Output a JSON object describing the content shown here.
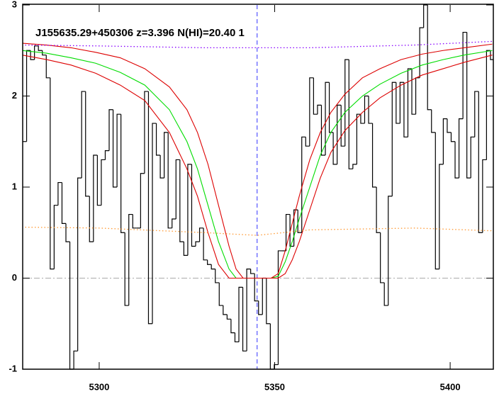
{
  "chart_data": {
    "type": "line",
    "title": "J155635.29+450306 z=3.396 N(HI)=20.40 1",
    "xlim": [
      5278.2,
      5412.3
    ],
    "ylim": [
      -1,
      3
    ],
    "xticks": [
      5300,
      5350,
      5400
    ],
    "yticks": [
      -1,
      0,
      1,
      2,
      3
    ],
    "reference_lines": [
      {
        "axis": "x",
        "value": 5345,
        "color": "#3333ff",
        "style": "dashed"
      },
      {
        "axis": "y",
        "value": 0,
        "color": "#aaaaaa",
        "style": "dashdot"
      }
    ],
    "series": [
      {
        "color": "#000000",
        "style": "steps",
        "x": [
          5278.2,
          5279.32,
          5280.44,
          5281.56,
          5282.68,
          5283.8,
          5284.92,
          5286.04,
          5287.16,
          5288.28,
          5289.4,
          5290.52,
          5291.64,
          5292.76,
          5293.88,
          5295,
          5296.12,
          5297.24,
          5298.36,
          5299.48,
          5300.6,
          5301.72,
          5302.84,
          5303.96,
          5305.08,
          5306.2,
          5307.32,
          5308.44,
          5309.56,
          5310.68,
          5311.8,
          5312.92,
          5314.04,
          5315.16,
          5316.28,
          5317.4,
          5318.52,
          5319.64,
          5320.76,
          5321.88,
          5323,
          5324.12,
          5325.24,
          5326.36,
          5327.48,
          5328.6,
          5329.72,
          5330.84,
          5331.96,
          5333.08,
          5334.2,
          5335.32,
          5336.44,
          5337.56,
          5338.68,
          5339.8,
          5340.92,
          5342.04,
          5343.16,
          5344.28,
          5345.4,
          5346.52,
          5347.64,
          5348.76,
          5349.88,
          5351,
          5352.12,
          5353.24,
          5354.36,
          5355.48,
          5356.6,
          5357.72,
          5358.84,
          5359.96,
          5361.08,
          5362.2,
          5363.32,
          5364.44,
          5365.56,
          5366.68,
          5367.8,
          5368.92,
          5370.04,
          5371.16,
          5372.28,
          5373.4,
          5374.52,
          5375.64,
          5376.76,
          5377.88,
          5379,
          5380.12,
          5381.24,
          5382.36,
          5383.48,
          5384.6,
          5385.72,
          5386.84,
          5387.96,
          5389.08,
          5390.2,
          5391.32,
          5392.44,
          5393.56,
          5394.68,
          5395.8,
          5396.92,
          5398.04,
          5399.16,
          5400.28,
          5401.4,
          5402.52,
          5403.64,
          5404.76,
          5405.88,
          5407,
          5408.12,
          5409.24,
          5410.36,
          5411.48
        ],
        "values": [
          1.5,
          2.5,
          2.4,
          2.55,
          2.5,
          2.45,
          2.2,
          0.1,
          0.8,
          1.05,
          0.6,
          0.4,
          -1,
          -0.8,
          1.1,
          2.05,
          0.9,
          0.4,
          1.35,
          0.8,
          1.3,
          1.4,
          1.85,
          1.0,
          1.8,
          0.5,
          -0.3,
          0.7,
          0.55,
          0.55,
          1.15,
          2.05,
          -0.5,
          1.7,
          1.35,
          1.1,
          1.6,
          0.55,
          0.65,
          1.3,
          0.4,
          0.25,
          1.25,
          0.35,
          0.4,
          0.55,
          0.2,
          0.15,
          0.1,
          -0.05,
          -0.3,
          -0.4,
          -0.45,
          -0.6,
          -0.7,
          -0.1,
          -0.8,
          0.1,
          0.05,
          -0.25,
          -0.4,
          0,
          -0.5,
          -1,
          -0.95,
          0.3,
          0.3,
          0.7,
          0.35,
          0.75,
          0.5,
          1.55,
          1.45,
          2.2,
          1.8,
          1.9,
          1.35,
          2.15,
          1.6,
          1.25,
          1.9,
          1.45,
          2.4,
          1.2,
          1.25,
          1.8,
          1.7,
          2.0,
          1.7,
          1.0,
          0.5,
          -0.05,
          -0.3,
          0.9,
          2.15,
          1.7,
          2.15,
          1.55,
          2.3,
          1.8,
          2.2,
          2.75,
          3.0,
          1.85,
          1.6,
          0.1,
          1.25,
          1.75,
          1.6,
          1.5,
          1.1,
          1.75,
          2.7,
          1.1,
          1.55,
          2.05,
          0.5,
          1.3,
          2.5,
          2.4
        ]
      },
      {
        "color": "#00dd00",
        "style": "solid",
        "x": [
          5278,
          5285,
          5292,
          5299,
          5306,
          5313,
          5320,
          5325,
          5328,
          5331,
          5334,
          5337,
          5339,
          5341,
          5345,
          5349,
          5351,
          5353,
          5355,
          5357,
          5360,
          5363,
          5366,
          5370,
          5375,
          5380,
          5386,
          5392,
          5398,
          5404,
          5412
        ],
        "values": [
          2.5,
          2.47,
          2.42,
          2.36,
          2.26,
          2.12,
          1.85,
          1.5,
          1.2,
          0.8,
          0.4,
          0.1,
          0,
          0,
          0,
          0,
          0.02,
          0.18,
          0.4,
          0.65,
          1.0,
          1.35,
          1.6,
          1.82,
          2.0,
          2.13,
          2.25,
          2.34,
          2.4,
          2.45,
          2.5
        ]
      },
      {
        "color": "#dd0000",
        "style": "solid",
        "x": [
          5278,
          5285,
          5292,
          5299,
          5306,
          5313,
          5320,
          5325,
          5328,
          5331,
          5334,
          5337,
          5339,
          5341,
          5345,
          5349,
          5351,
          5353,
          5355,
          5357,
          5360,
          5363,
          5366,
          5370,
          5375,
          5380,
          5386,
          5392,
          5398,
          5404,
          5412
        ],
        "values": [
          2.58,
          2.56,
          2.53,
          2.48,
          2.42,
          2.3,
          2.1,
          1.85,
          1.6,
          1.25,
          0.8,
          0.35,
          0.1,
          0,
          0,
          0,
          0.05,
          0.3,
          0.6,
          0.9,
          1.3,
          1.6,
          1.82,
          2.02,
          2.2,
          2.3,
          2.4,
          2.46,
          2.5,
          2.53,
          2.57
        ]
      },
      {
        "color": "#dd0000",
        "style": "solid",
        "x": [
          5278,
          5285,
          5292,
          5299,
          5306,
          5313,
          5320,
          5325,
          5328,
          5331,
          5334,
          5337,
          5339,
          5341,
          5345,
          5349,
          5351,
          5353,
          5355,
          5357,
          5360,
          5363,
          5366,
          5370,
          5375,
          5380,
          5386,
          5392,
          5398,
          5404,
          5412
        ],
        "values": [
          2.45,
          2.4,
          2.34,
          2.25,
          2.12,
          1.95,
          1.6,
          1.2,
          0.9,
          0.5,
          0.15,
          0,
          0,
          0,
          0,
          0,
          0,
          0.05,
          0.2,
          0.4,
          0.75,
          1.1,
          1.38,
          1.62,
          1.82,
          1.98,
          2.12,
          2.23,
          2.3,
          2.37,
          2.45
        ]
      },
      {
        "color": "#8800ff",
        "style": "dotted",
        "x": [
          5278,
          5300,
          5330,
          5360,
          5390,
          5412
        ],
        "values": [
          2.56,
          2.55,
          2.53,
          2.53,
          2.56,
          2.6
        ]
      },
      {
        "color": "#ff9933",
        "style": "dotted",
        "x": [
          5278,
          5300,
          5330,
          5345,
          5360,
          5390,
          5412
        ],
        "values": [
          0.56,
          0.55,
          0.5,
          0.47,
          0.53,
          0.55,
          0.52
        ]
      }
    ]
  }
}
